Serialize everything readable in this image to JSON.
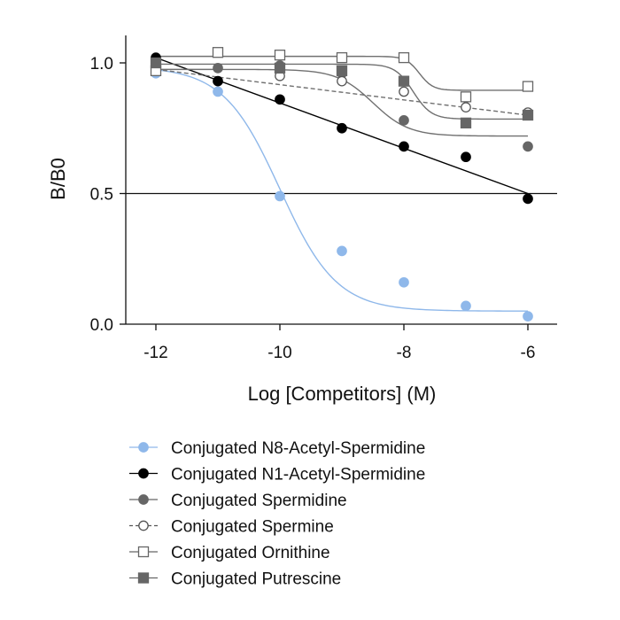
{
  "chart_data": {
    "type": "scatter",
    "xlabel": "Log [Competitors] (M)",
    "ylabel": "B/B0",
    "xlim": [
      -12.5,
      -5.5
    ],
    "ylim": [
      0.0,
      1.1
    ],
    "xticks": [
      -12,
      -10,
      -8,
      -6
    ],
    "yticks": [
      0.0,
      0.5,
      1.0
    ],
    "ytick_labels": [
      "0.0",
      "0.5",
      "1.0"
    ],
    "reference_line_y": 0.5,
    "legend_position": "bottom",
    "series": [
      {
        "name": "Conjugated N8-Acetyl-Spermidine",
        "color": "#8fb8ea",
        "marker": "circle-filled",
        "line": "solid",
        "x": [
          -12,
          -11,
          -10,
          -9,
          -8,
          -7,
          -6
        ],
        "y": [
          0.96,
          0.89,
          0.49,
          0.28,
          0.16,
          0.07,
          0.03
        ],
        "fit": {
          "model": "sigmoid",
          "top": 0.985,
          "bottom": 0.05,
          "logec50": -10.0,
          "hill": 0.95
        }
      },
      {
        "name": "Conjugated N1-Acetyl-Spermidine",
        "color": "#000000",
        "marker": "circle-filled",
        "line": "solid",
        "x": [
          -12,
          -11,
          -10,
          -9,
          -8,
          -7,
          -6
        ],
        "y": [
          1.02,
          0.93,
          0.86,
          0.75,
          0.68,
          0.64,
          0.48
        ],
        "fit": {
          "model": "linear",
          "x": [
            -12,
            -6
          ],
          "y": [
            1.02,
            0.5
          ]
        }
      },
      {
        "name": "Conjugated Spermidine",
        "color": "#666666",
        "marker": "circle-filled",
        "line": "solid",
        "x": [
          -12,
          -11,
          -10,
          -9,
          -8,
          -7,
          -6
        ],
        "y": [
          0.99,
          0.98,
          0.99,
          0.96,
          0.78,
          0.77,
          0.68
        ],
        "fit": {
          "model": "sigmoid",
          "top": 0.975,
          "bottom": 0.72,
          "logec50": -8.5,
          "hill": 1.5
        }
      },
      {
        "name": "Conjugated Spermine",
        "color": "#555555",
        "marker": "circle-open",
        "line": "dashed",
        "x": [
          -12,
          -10,
          -9,
          -8,
          -7,
          -6
        ],
        "y": [
          0.98,
          0.95,
          0.93,
          0.89,
          0.83,
          0.81
        ],
        "fit": {
          "model": "linear",
          "x": [
            -12,
            -6
          ],
          "y": [
            0.975,
            0.8
          ]
        }
      },
      {
        "name": "Conjugated Ornithine",
        "color": "#666666",
        "marker": "square-open",
        "line": "solid",
        "x": [
          -12,
          -11,
          -10,
          -9,
          -8,
          -7,
          -6
        ],
        "y": [
          0.97,
          1.04,
          1.03,
          1.02,
          1.02,
          0.87,
          0.91
        ],
        "fit": {
          "model": "sigmoid",
          "top": 1.025,
          "bottom": 0.895,
          "logec50": -7.75,
          "hill": 4.0
        }
      },
      {
        "name": "Conjugated Putrescine",
        "color": "#666666",
        "marker": "square-filled",
        "line": "solid",
        "x": [
          -12,
          -10,
          -9,
          -8,
          -7,
          -6
        ],
        "y": [
          1.0,
          0.98,
          0.97,
          0.93,
          0.77,
          0.8
        ],
        "fit": {
          "model": "sigmoid",
          "top": 0.995,
          "bottom": 0.785,
          "logec50": -7.85,
          "hill": 3.0
        }
      }
    ]
  }
}
